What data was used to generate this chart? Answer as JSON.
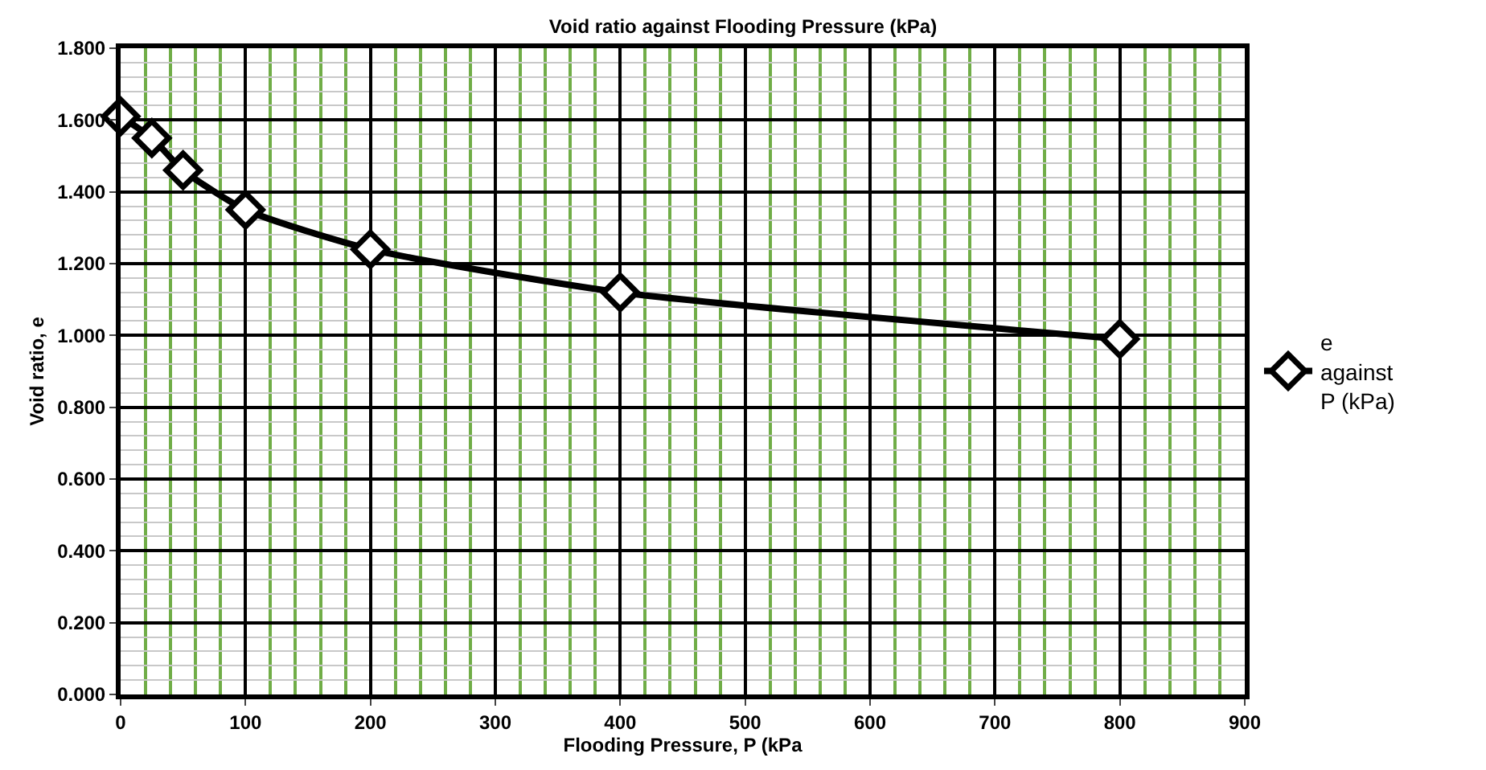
{
  "chart_data": {
    "type": "line",
    "title": "Void ratio against Flooding Pressure (kPa)",
    "xlabel": "Flooding Pressure, P (kPa",
    "ylabel": "Void ratio, e",
    "x": [
      0,
      25,
      50,
      100,
      200,
      400,
      800
    ],
    "series": [
      {
        "name": "e against P (kPa)",
        "color": "#000000",
        "values": [
          1.61,
          1.55,
          1.46,
          1.35,
          1.24,
          1.12,
          0.99
        ]
      }
    ],
    "xlim": [
      0,
      900
    ],
    "xticks": [
      0,
      {
        "value": 20,
        "label": null
      },
      {
        "value": 40,
        "label": null
      },
      {
        "value": 60,
        "label": null
      },
      {
        "value": 80,
        "label": null
      },
      100,
      {
        "value": 120,
        "label": null
      },
      {
        "value": 140,
        "label": null
      },
      {
        "value": 160,
        "label": null
      },
      {
        "value": 180,
        "label": null
      },
      200,
      {
        "value": 220,
        "label": null
      },
      {
        "value": 240,
        "label": null
      },
      {
        "value": 260,
        "label": null
      },
      {
        "value": 280,
        "label": null
      },
      300,
      {
        "value": 320,
        "label": null
      },
      {
        "value": 340,
        "label": null
      },
      {
        "value": 360,
        "label": null
      },
      {
        "value": 380,
        "label": null
      },
      400,
      {
        "value": 420,
        "label": null
      },
      {
        "value": 440,
        "label": null
      },
      {
        "value": 460,
        "label": null
      },
      {
        "value": 480,
        "label": null
      },
      500,
      {
        "value": 520,
        "label": null
      },
      {
        "value": 540,
        "label": null
      },
      {
        "value": 560,
        "label": null
      },
      {
        "value": 580,
        "label": null
      },
      600,
      {
        "value": 620,
        "label": null
      },
      {
        "value": 640,
        "label": null
      },
      {
        "value": 660,
        "label": null
      },
      {
        "value": 680,
        "label": null
      },
      700,
      {
        "value": 720,
        "label": null
      },
      {
        "value": 740,
        "label": null
      },
      {
        "value": 760,
        "label": null
      },
      {
        "value": 780,
        "label": null
      },
      800,
      {
        "value": 820,
        "label": null
      },
      {
        "value": 840,
        "label": null
      },
      {
        "value": 860,
        "label": null
      },
      {
        "value": 880,
        "label": null
      },
      900
    ],
    "ylim": [
      0,
      1.8
    ],
    "yticks": [
      {
        "value": 0,
        "label": "0.000"
      },
      {
        "value": 0.04,
        "label": null
      },
      {
        "value": 0.08,
        "label": null
      },
      {
        "value": 0.12,
        "label": null
      },
      {
        "value": 0.16,
        "label": null
      },
      {
        "value": 0.2,
        "label": "0.200"
      },
      {
        "value": 0.24,
        "label": null
      },
      {
        "value": 0.28,
        "label": null
      },
      {
        "value": 0.32,
        "label": null
      },
      {
        "value": 0.36,
        "label": null
      },
      {
        "value": 0.4,
        "label": "0.400"
      },
      {
        "value": 0.44,
        "label": null
      },
      {
        "value": 0.48,
        "label": null
      },
      {
        "value": 0.52,
        "label": null
      },
      {
        "value": 0.56,
        "label": null
      },
      {
        "value": 0.6,
        "label": "0.600"
      },
      {
        "value": 0.64,
        "label": null
      },
      {
        "value": 0.68,
        "label": null
      },
      {
        "value": 0.72,
        "label": null
      },
      {
        "value": 0.76,
        "label": null
      },
      {
        "value": 0.8,
        "label": "0.800"
      },
      {
        "value": 0.84,
        "label": null
      },
      {
        "value": 0.88,
        "label": null
      },
      {
        "value": 0.92,
        "label": null
      },
      {
        "value": 0.96,
        "label": null
      },
      {
        "value": 1.0,
        "label": "1.000"
      },
      {
        "value": 1.04,
        "label": null
      },
      {
        "value": 1.08,
        "label": null
      },
      {
        "value": 1.12,
        "label": null
      },
      {
        "value": 1.16,
        "label": null
      },
      {
        "value": 1.2,
        "label": "1.200"
      },
      {
        "value": 1.24,
        "label": null
      },
      {
        "value": 1.28,
        "label": null
      },
      {
        "value": 1.32,
        "label": null
      },
      {
        "value": 1.36,
        "label": null
      },
      {
        "value": 1.4,
        "label": "1.400"
      },
      {
        "value": 1.44,
        "label": null
      },
      {
        "value": 1.48,
        "label": null
      },
      {
        "value": 1.52,
        "label": null
      },
      {
        "value": 1.56,
        "label": null
      },
      {
        "value": 1.6,
        "label": "1.600"
      },
      {
        "value": 1.64,
        "label": null
      },
      {
        "value": 1.68,
        "label": null
      },
      {
        "value": 1.72,
        "label": null
      },
      {
        "value": 1.76,
        "label": null
      },
      {
        "value": 1.8,
        "label": "1.800"
      }
    ],
    "grid": true,
    "legend": "right",
    "marker": "diamond",
    "line_style": "solid"
  }
}
